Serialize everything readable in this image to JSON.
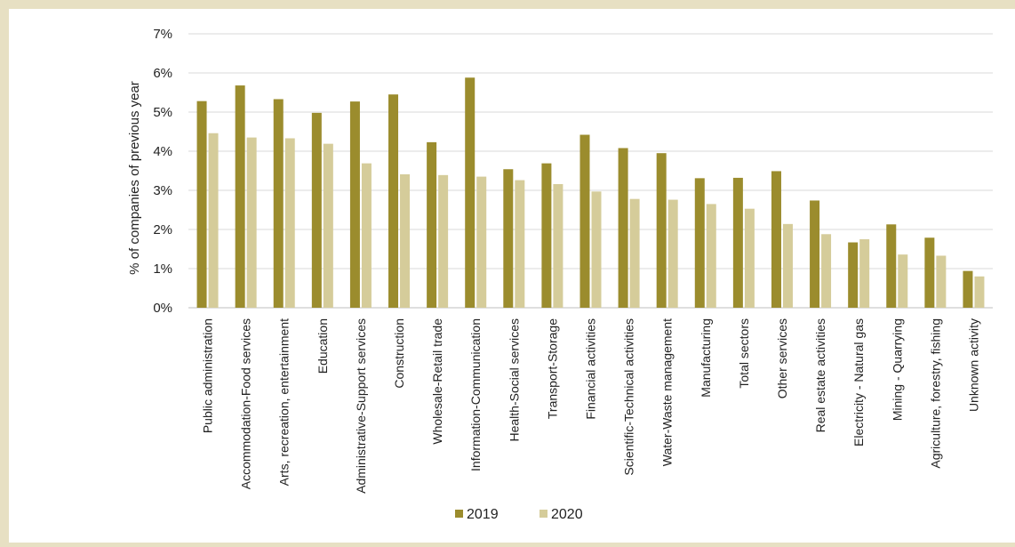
{
  "chart_data": {
    "type": "bar",
    "title": "",
    "xlabel": "",
    "ylabel": "% of companies of previous year",
    "ylim": [
      0,
      7
    ],
    "yticks": [
      "0%",
      "1%",
      "2%",
      "3%",
      "4%",
      "5%",
      "6%",
      "7%"
    ],
    "grid": true,
    "legend_position": "bottom",
    "categories": [
      "Public administration",
      "Accommodation-Food services",
      "Arts, recreation, entertainment",
      "Education",
      "Administrative-Support services",
      "Construction",
      "Wholesale-Retail trade",
      "Information-Communication",
      "Health-Social services",
      "Transport-Storage",
      "Financial activities",
      "Scientific-Technical activities",
      "Water-Waste management",
      "Manufacturing",
      "Total sectors",
      "Other services",
      "Real estate activities",
      "Electricity - Natural gas",
      "Mining - Quarrying",
      "Agriculture, forestry, fishing",
      "Unknown activity"
    ],
    "series": [
      {
        "name": "2019",
        "color": "#9b8c2d",
        "values": [
          5.28,
          5.68,
          5.33,
          4.98,
          5.27,
          5.45,
          4.23,
          5.88,
          3.54,
          3.69,
          4.42,
          4.08,
          3.95,
          3.31,
          3.32,
          3.49,
          2.74,
          1.67,
          2.13,
          1.79,
          0.94
        ]
      },
      {
        "name": "2020",
        "color": "#d5cc9a",
        "values": [
          4.46,
          4.35,
          4.33,
          4.19,
          3.69,
          3.41,
          3.39,
          3.35,
          3.26,
          3.16,
          2.97,
          2.78,
          2.76,
          2.65,
          2.53,
          2.14,
          1.88,
          1.75,
          1.36,
          1.33,
          0.8
        ]
      }
    ]
  }
}
